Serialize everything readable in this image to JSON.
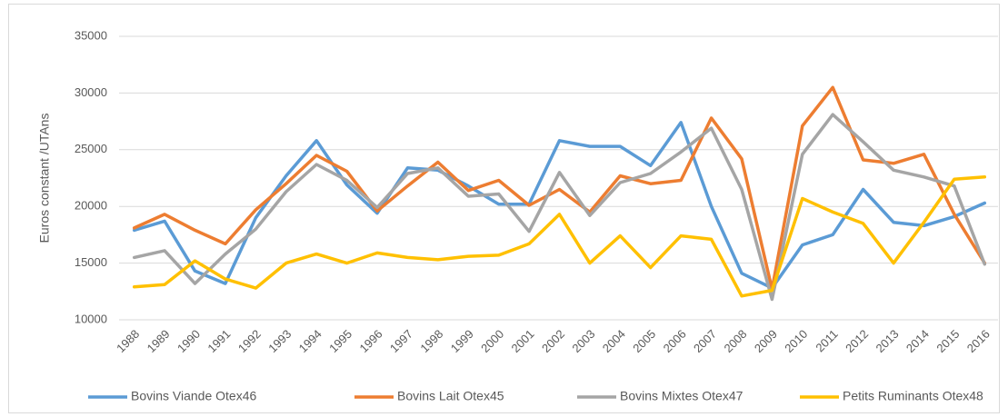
{
  "chart_data": {
    "type": "line",
    "y_label": "Euros constant /UTAns",
    "categories": [
      "1988",
      "1989",
      "1990",
      "1991",
      "1992",
      "1993",
      "1994",
      "1995",
      "1996",
      "1997",
      "1998",
      "1999",
      "2000",
      "2001",
      "2002",
      "2003",
      "2004",
      "2005",
      "2006",
      "2007",
      "2008",
      "2009",
      "2010",
      "2011",
      "2012",
      "2013",
      "2014",
      "2015",
      "2016"
    ],
    "series": [
      {
        "name": "Bovins Viande Otex46",
        "color": "#5b9bd5",
        "values": [
          17900,
          18700,
          14300,
          13200,
          19000,
          22700,
          25800,
          21900,
          19400,
          23400,
          23200,
          21800,
          20200,
          20200,
          25800,
          25300,
          25300,
          23600,
          27400,
          20000,
          14100,
          12800,
          16600,
          17500,
          21500,
          18600,
          18300,
          19100,
          20300
        ]
      },
      {
        "name": "Bovins Lait Otex45",
        "color": "#ed7d31",
        "values": [
          18100,
          19300,
          17900,
          16700,
          19700,
          22000,
          24500,
          23100,
          19600,
          21800,
          23900,
          21400,
          22300,
          20100,
          21500,
          19500,
          22700,
          22000,
          22300,
          27800,
          24200,
          12700,
          27100,
          30500,
          24100,
          23800,
          24600,
          19300,
          15000
        ]
      },
      {
        "name": "Bovins Mixtes Otex47",
        "color": "#a5a5a5",
        "values": [
          15500,
          16100,
          13200,
          15800,
          18000,
          21300,
          23700,
          22300,
          19900,
          22900,
          23400,
          20900,
          21100,
          17800,
          23000,
          19200,
          22100,
          22900,
          24800,
          26900,
          21500,
          11800,
          24600,
          28100,
          25700,
          23200,
          22600,
          21800,
          14900
        ]
      },
      {
        "name": "Petits Ruminants Otex48",
        "color": "#ffc000",
        "values": [
          12900,
          13100,
          15200,
          13600,
          12800,
          15000,
          15800,
          15000,
          15900,
          15500,
          15300,
          15600,
          15700,
          16700,
          19300,
          15000,
          17400,
          14600,
          17400,
          17100,
          12100,
          12600,
          20700,
          19500,
          18500,
          15000,
          18600,
          22400,
          22600
        ]
      }
    ],
    "ylim": [
      10000,
      35000
    ],
    "yticks": [
      10000,
      15000,
      20000,
      25000,
      30000,
      35000
    ],
    "grid": true,
    "legend": "bottom"
  }
}
